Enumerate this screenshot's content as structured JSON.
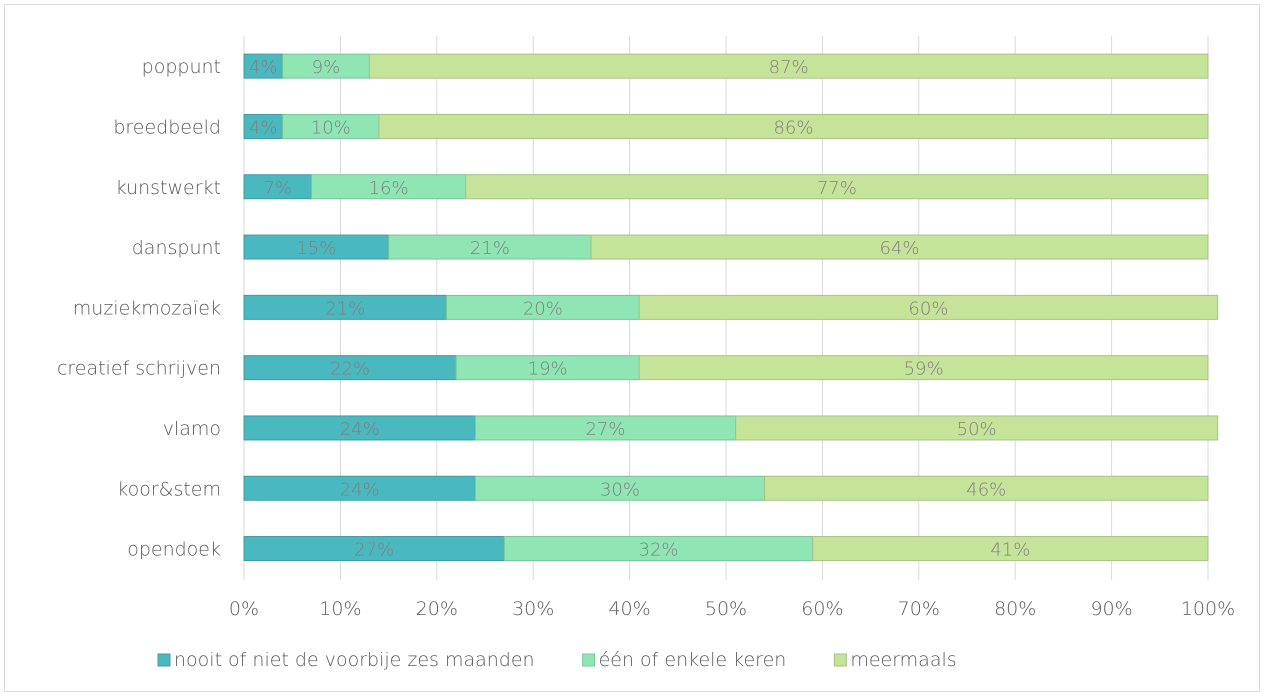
{
  "chart_data": {
    "type": "bar",
    "orientation": "horizontal",
    "stacked": "percent",
    "categories": [
      "poppunt",
      "breedbeeld",
      "kunstwerkt",
      "danspunt",
      "muziekmozaïek",
      "creatief schrijven",
      "vlamo",
      "koor&stem",
      "opendoek"
    ],
    "series": [
      {
        "name": "nooit of niet de voorbije zes maanden",
        "color": "#4ab8bf",
        "values": [
          4,
          4,
          7,
          15,
          21,
          22,
          24,
          24,
          27
        ]
      },
      {
        "name": "één of enkele keren",
        "color": "#8fe6b4",
        "values": [
          9,
          10,
          16,
          21,
          20,
          19,
          27,
          30,
          32
        ]
      },
      {
        "name": "meermaals",
        "color": "#c6e39a",
        "values": [
          87,
          86,
          77,
          64,
          60,
          59,
          50,
          46,
          41
        ]
      }
    ],
    "x_ticks": [
      "0%",
      "10%",
      "20%",
      "30%",
      "40%",
      "50%",
      "60%",
      "70%",
      "80%",
      "90%",
      "100%"
    ],
    "xlim": [
      0,
      100
    ],
    "grid": true,
    "legend_position": "bottom"
  }
}
